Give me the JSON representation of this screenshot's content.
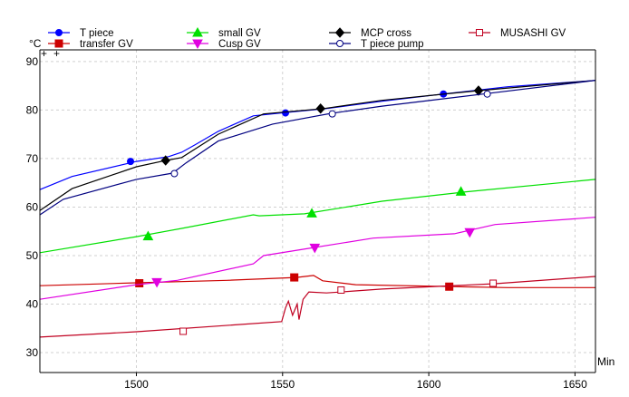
{
  "chart_data": {
    "type": "line",
    "title": "",
    "xlabel": "Min",
    "ylabel": "°C",
    "xlim": [
      1467,
      1657
    ],
    "ylim": [
      25.9,
      92.4
    ],
    "x_ticks": [
      1500,
      1550,
      1600,
      1650
    ],
    "x_tick_labels": [
      "1500",
      "1550",
      "1600",
      "1650"
    ],
    "y_ticks": [
      30,
      40,
      50,
      60,
      70,
      80,
      90
    ],
    "y_tick_labels": [
      "30",
      "40",
      "50",
      "60",
      "70",
      "80",
      "90"
    ],
    "grid": true,
    "legend_position": "top",
    "corner_marks": [
      "+",
      "+"
    ],
    "series": [
      {
        "name": "T piece",
        "color": "#0000ff",
        "marker": "filled-circle",
        "points": [
          [
            1467,
            63.6
          ],
          [
            1478,
            66.3
          ],
          [
            1500,
            69.4
          ],
          [
            1511,
            70.4
          ],
          [
            1515.5,
            71.3
          ],
          [
            1520,
            72.8
          ],
          [
            1528,
            75.6
          ],
          [
            1540,
            78.8
          ],
          [
            1551,
            79.5
          ],
          [
            1565,
            80.3
          ],
          [
            1584,
            81.8
          ],
          [
            1605,
            83.3
          ],
          [
            1627,
            84.8
          ],
          [
            1657,
            86.1
          ]
        ],
        "markers": [
          [
            1498,
            69.4
          ],
          [
            1551,
            79.4
          ],
          [
            1605,
            83.3
          ]
        ]
      },
      {
        "name": "transfer GV",
        "color": "#cc0000",
        "marker": "filled-square",
        "points": [
          [
            1467,
            43.8
          ],
          [
            1500,
            44.4
          ],
          [
            1531,
            44.9
          ],
          [
            1554.7,
            45.5
          ],
          [
            1560.6,
            45.9
          ],
          [
            1563.7,
            44.8
          ],
          [
            1575,
            44.0
          ],
          [
            1608,
            43.6
          ],
          [
            1627,
            43.4
          ],
          [
            1657,
            43.4
          ]
        ],
        "markers": [
          [
            1501,
            44.3
          ],
          [
            1554,
            45.5
          ],
          [
            1607,
            43.6
          ]
        ]
      },
      {
        "name": "small GV",
        "color": "#00e000",
        "marker": "filled-triangle-up",
        "points": [
          [
            1467,
            50.6
          ],
          [
            1500,
            53.9
          ],
          [
            1515.5,
            55.6
          ],
          [
            1540,
            58.4
          ],
          [
            1542,
            58.2
          ],
          [
            1557.5,
            58.6
          ],
          [
            1584,
            61.2
          ],
          [
            1612,
            63.1
          ],
          [
            1657,
            65.7
          ]
        ],
        "markers": [
          [
            1504,
            54.0
          ],
          [
            1560,
            58.7
          ],
          [
            1611,
            63.2
          ]
        ]
      },
      {
        "name": "Cusp GV",
        "color": "#e000e0",
        "marker": "filled-triangle-down",
        "points": [
          [
            1467,
            41.0
          ],
          [
            1500,
            44.0
          ],
          [
            1514,
            44.9
          ],
          [
            1540,
            48.3
          ],
          [
            1543.5,
            50.0
          ],
          [
            1559,
            51.5
          ],
          [
            1581,
            53.6
          ],
          [
            1608.7,
            54.5
          ],
          [
            1622.7,
            56.4
          ],
          [
            1657,
            57.9
          ]
        ],
        "markers": [
          [
            1507,
            44.5
          ],
          [
            1561,
            51.6
          ],
          [
            1614,
            54.8
          ]
        ]
      },
      {
        "name": "MCP cross",
        "color": "#000000",
        "marker": "filled-diamond",
        "points": [
          [
            1467,
            59.3
          ],
          [
            1478,
            63.8
          ],
          [
            1500,
            68.3
          ],
          [
            1510,
            69.6
          ],
          [
            1515.5,
            70.2
          ],
          [
            1528,
            75.0
          ],
          [
            1543.5,
            79.2
          ],
          [
            1564,
            80.3
          ],
          [
            1584,
            82.0
          ],
          [
            1617,
            84.0
          ],
          [
            1657,
            86.1
          ]
        ],
        "markers": [
          [
            1510,
            69.6
          ],
          [
            1563,
            80.3
          ],
          [
            1617,
            84.0
          ]
        ]
      },
      {
        "name": "T piece pump",
        "color": "#000080",
        "marker": "open-circle",
        "points": [
          [
            1467,
            58.4
          ],
          [
            1475,
            61.6
          ],
          [
            1500,
            65.7
          ],
          [
            1512.4,
            67.0
          ],
          [
            1517,
            69.1
          ],
          [
            1528,
            73.6
          ],
          [
            1546.6,
            77.1
          ],
          [
            1566.5,
            79.3
          ],
          [
            1584,
            80.8
          ],
          [
            1620,
            83.4
          ],
          [
            1657,
            86.1
          ]
        ],
        "markers": [
          [
            1513,
            66.9
          ],
          [
            1567,
            79.2
          ],
          [
            1620,
            83.3
          ]
        ]
      },
      {
        "name": "MUSASHI GV",
        "color": "#c00020",
        "marker": "open-square",
        "points": [
          [
            1467,
            33.2
          ],
          [
            1500,
            34.3
          ],
          [
            1549.7,
            36.4
          ],
          [
            1551,
            39.2
          ],
          [
            1552,
            40.6
          ],
          [
            1553.4,
            37.7
          ],
          [
            1555,
            40.0
          ],
          [
            1555.6,
            36.8
          ],
          [
            1557,
            41.0
          ],
          [
            1559,
            42.5
          ],
          [
            1565,
            42.3
          ],
          [
            1584,
            43.1
          ],
          [
            1622.7,
            44.2
          ],
          [
            1657,
            45.7
          ]
        ],
        "markers": [
          [
            1516,
            34.4
          ],
          [
            1570,
            42.9
          ],
          [
            1622,
            44.3
          ]
        ]
      }
    ]
  }
}
